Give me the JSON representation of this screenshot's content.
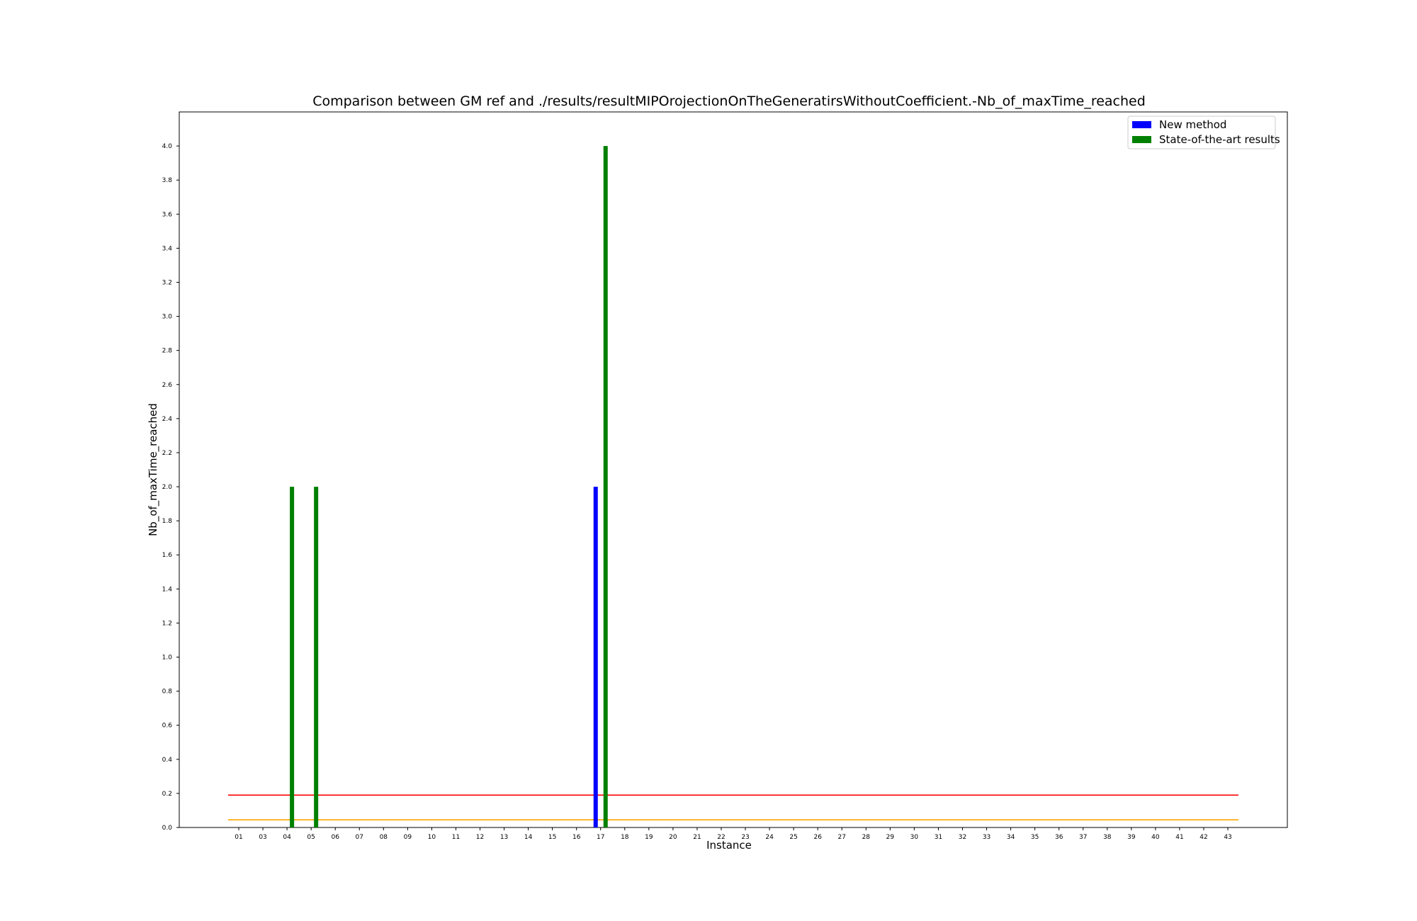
{
  "chart_data": {
    "type": "bar",
    "title": "Comparison between GM ref and ./results/resultMIPOrojectionOnTheGeneratirsWithoutCoefficient.-Nb_of_maxTime_reached",
    "xlabel": "Instance",
    "ylabel": "Nb_of_maxTime_reached",
    "ylim": [
      0,
      4.2
    ],
    "yticks": [
      0.0,
      0.2,
      0.4,
      0.6,
      0.8,
      1.0,
      1.2,
      1.4,
      1.6,
      1.8,
      2.0,
      2.2,
      2.4,
      2.6,
      2.8,
      3.0,
      3.2,
      3.4,
      3.6,
      3.8,
      4.0
    ],
    "categories": [
      "01",
      "03",
      "04",
      "05",
      "06",
      "07",
      "08",
      "09",
      "10",
      "11",
      "12",
      "13",
      "14",
      "15",
      "16",
      "17",
      "18",
      "19",
      "20",
      "21",
      "22",
      "23",
      "24",
      "25",
      "26",
      "27",
      "28",
      "29",
      "30",
      "31",
      "32",
      "33",
      "34",
      "35",
      "36",
      "37",
      "38",
      "39",
      "40",
      "41",
      "42",
      "43"
    ],
    "series": [
      {
        "name": "New method",
        "color": "#0000ff",
        "values": [
          0,
          0,
          0,
          0,
          0,
          0,
          0,
          0,
          0,
          0,
          0,
          0,
          0,
          0,
          0,
          2,
          0,
          0,
          0,
          0,
          0,
          0,
          0,
          0,
          0,
          0,
          0,
          0,
          0,
          0,
          0,
          0,
          0,
          0,
          0,
          0,
          0,
          0,
          0,
          0,
          0,
          0
        ]
      },
      {
        "name": "State-of-the-art results",
        "color": "#008000",
        "values": [
          0,
          0,
          2,
          2,
          0,
          0,
          0,
          0,
          0,
          0,
          0,
          0,
          0,
          0,
          0,
          4,
          0,
          0,
          0,
          0,
          0,
          0,
          0,
          0,
          0,
          0,
          0,
          0,
          0,
          0,
          0,
          0,
          0,
          0,
          0,
          0,
          0,
          0,
          0,
          0,
          0,
          0
        ]
      }
    ],
    "reference_lines": [
      {
        "value": 0.19,
        "color": "#ff0000"
      },
      {
        "value": 0.045,
        "color": "#ffa500"
      }
    ],
    "legend_position": "top-right",
    "grid": false
  }
}
